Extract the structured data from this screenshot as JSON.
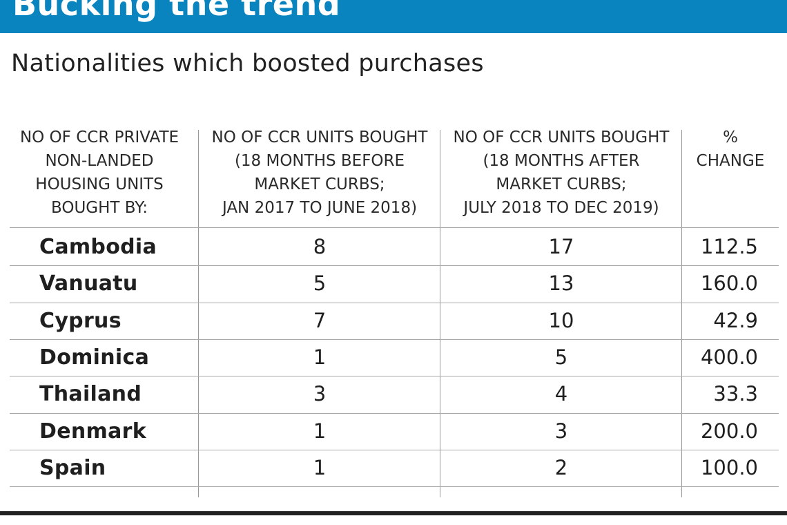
{
  "banner": {
    "title": "Bucking the trend",
    "color": "#0a84bf"
  },
  "subtitle": "Nationalities which boosted purchases",
  "chart_data": {
    "type": "table",
    "title": "Bucking the trend",
    "subtitle": "Nationalities which boosted purchases",
    "columns": [
      "NO OF CCR PRIVATE\nNON-LANDED\nHOUSING UNITS\nBOUGHT BY:",
      "NO OF CCR UNITS BOUGHT\n(18 MONTHS BEFORE\nMARKET CURBS;\nJAN 2017 TO JUNE 2018)",
      "NO OF CCR UNITS BOUGHT\n(18 MONTHS AFTER\nMARKET CURBS;\nJULY 2018 TO DEC 2019)",
      "%\nCHANGE"
    ],
    "rows": [
      {
        "country": "Cambodia",
        "before": "8",
        "after": "17",
        "pct_change": "112.5"
      },
      {
        "country": "Vanuatu",
        "before": "5",
        "after": "13",
        "pct_change": "160.0"
      },
      {
        "country": "Cyprus",
        "before": "7",
        "after": "10",
        "pct_change": "42.9"
      },
      {
        "country": "Dominica",
        "before": "1",
        "after": "5",
        "pct_change": "400.0"
      },
      {
        "country": "Thailand",
        "before": "3",
        "after": "4",
        "pct_change": "33.3"
      },
      {
        "country": "Denmark",
        "before": "1",
        "after": "3",
        "pct_change": "200.0"
      },
      {
        "country": "Spain",
        "before": "1",
        "after": "2",
        "pct_change": "100.0"
      }
    ]
  }
}
